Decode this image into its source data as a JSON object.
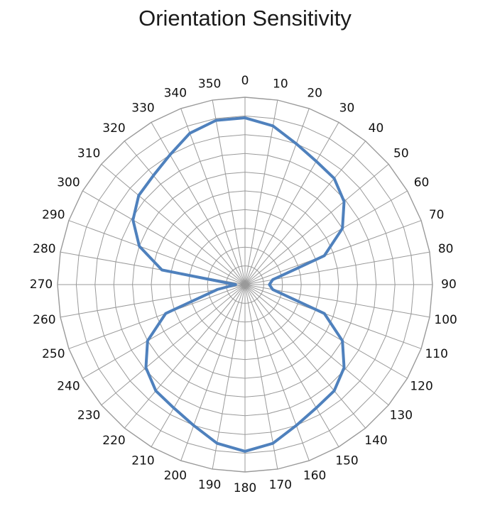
{
  "chart_data": {
    "type": "radar",
    "title": "Orientation Sensitivity",
    "angle_labels": [
      "0",
      "10",
      "20",
      "30",
      "40",
      "50",
      "60",
      "70",
      "80",
      "90",
      "100",
      "110",
      "120",
      "130",
      "140",
      "150",
      "160",
      "170",
      "180",
      "190",
      "200",
      "210",
      "220",
      "230",
      "240",
      "250",
      "260",
      "270",
      "280",
      "290",
      "300",
      "310",
      "320",
      "330",
      "340",
      "350"
    ],
    "rlim": [
      0,
      1
    ],
    "ring_count": 10,
    "grid": true,
    "series": [
      {
        "color": "#4f81bd",
        "angles": [
          0,
          10,
          20,
          30,
          40,
          50,
          60,
          70,
          80,
          90,
          100,
          110,
          120,
          130,
          140,
          150,
          160,
          170,
          180,
          190,
          200,
          210,
          220,
          230,
          240,
          250,
          260,
          270,
          280,
          290,
          300,
          310,
          320,
          330,
          340,
          350
        ],
        "values": [
          0.89,
          0.86,
          0.8,
          0.76,
          0.74,
          0.69,
          0.6,
          0.45,
          0.15,
          0.13,
          0.15,
          0.45,
          0.6,
          0.69,
          0.74,
          0.76,
          0.8,
          0.86,
          0.89,
          0.86,
          0.8,
          0.76,
          0.74,
          0.69,
          0.6,
          0.45,
          0.15,
          0.05,
          0.45,
          0.6,
          0.69,
          0.74,
          0.76,
          0.8,
          0.86,
          0.89
        ]
      }
    ]
  }
}
